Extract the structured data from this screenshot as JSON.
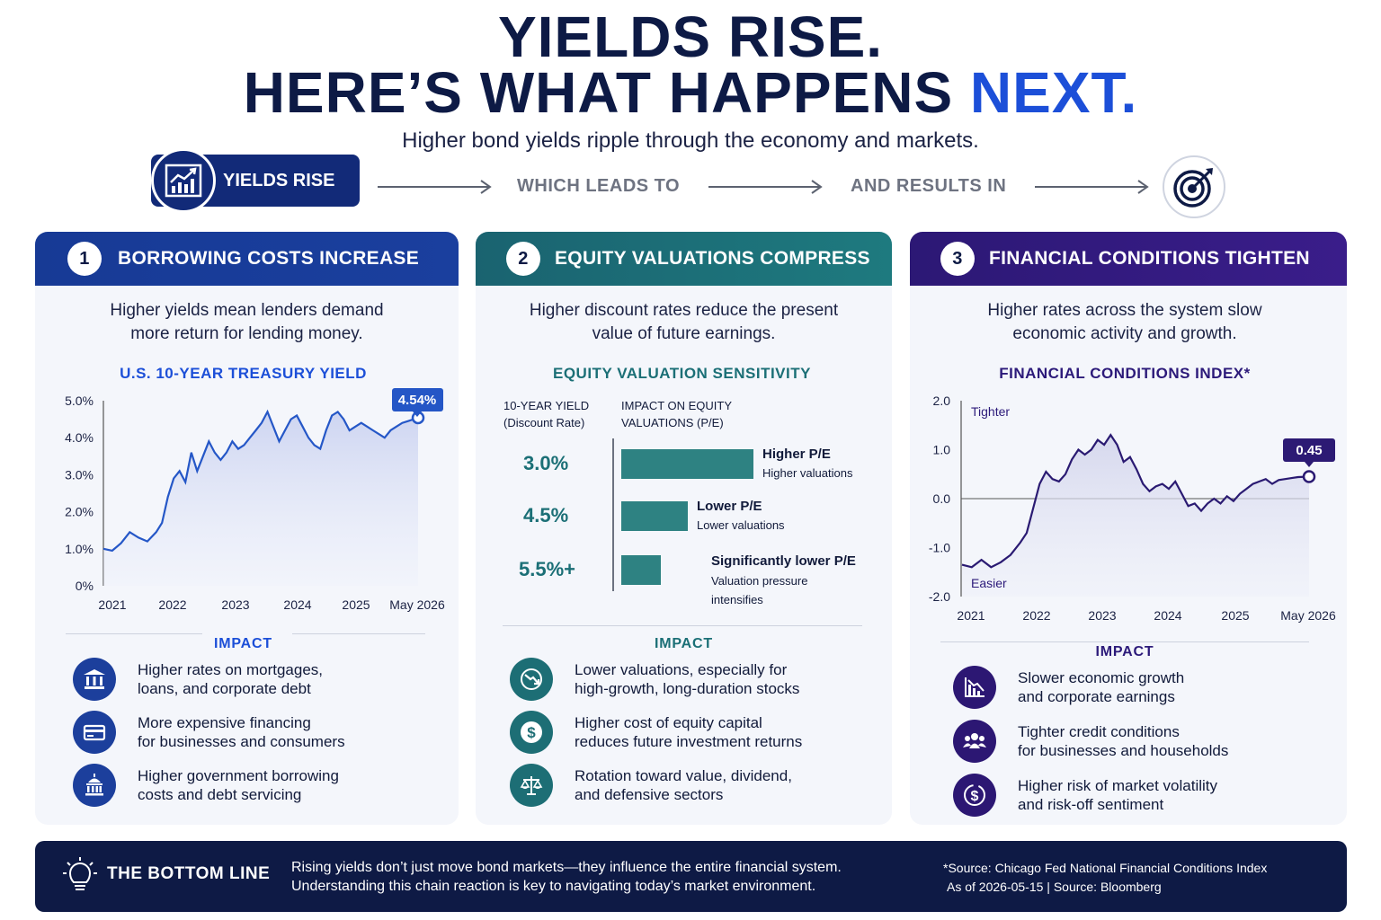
{
  "header": {
    "title_line1": "YIELDS RISE.",
    "title_line2_main": "HERE’S WHAT HAPPENS ",
    "title_line2_accent": "NEXT.",
    "subtitle": "Higher bond yields ripple through the economy and markets."
  },
  "flow": {
    "start": "YIELDS RISE",
    "step2": "WHICH LEADS TO",
    "step3": "AND RESULTS IN"
  },
  "colors": {
    "navy": "#0e1a45",
    "blue": "#1c4fd8",
    "col1_head": "#173a95",
    "teal": "#1c6f76",
    "purple": "#33197f"
  },
  "columns": [
    {
      "number": "1",
      "heading": "BORROWING COSTS INCREASE",
      "description_l1": "Higher yields mean lenders demand",
      "description_l2": "more return for lending money.",
      "chart_title": "U.S. 10-YEAR TREASURY YIELD",
      "impact_title": "IMPACT",
      "impacts": [
        {
          "icon": "bank-icon",
          "l1": "Higher rates on mortgages,",
          "l2": "loans, and corporate debt"
        },
        {
          "icon": "credit-card-icon",
          "l1": "More expensive financing",
          "l2": "for businesses and consumers"
        },
        {
          "icon": "government-building-icon",
          "l1": "Higher government borrowing",
          "l2": "costs and debt servicing"
        }
      ]
    },
    {
      "number": "2",
      "heading": "EQUITY VALUATIONS COMPRESS",
      "description_l1": "Higher discount rates reduce the present",
      "description_l2": "value of future earnings.",
      "chart_title": "EQUITY VALUATION SENSITIVITY",
      "impact_title": "IMPACT",
      "impacts": [
        {
          "icon": "chart-down-icon",
          "l1": "Lower valuations, especially for",
          "l2": "high-growth, long-duration stocks"
        },
        {
          "icon": "dollar-icon",
          "l1": "Higher cost of equity capital",
          "l2": "reduces future investment returns"
        },
        {
          "icon": "scales-icon",
          "l1": "Rotation toward value, dividend,",
          "l2": "and defensive sectors"
        }
      ]
    },
    {
      "number": "3",
      "heading": "FINANCIAL CONDITIONS TIGHTEN",
      "description_l1": "Higher rates across the system slow",
      "description_l2": "economic activity and growth.",
      "chart_title": "FINANCIAL CONDITIONS INDEX*",
      "impact_title": "IMPACT",
      "impacts": [
        {
          "icon": "chart-decline-icon",
          "l1": "Slower economic growth",
          "l2": "and corporate earnings"
        },
        {
          "icon": "people-icon",
          "l1": "Tighter credit conditions",
          "l2": "for businesses and households"
        },
        {
          "icon": "dollar-risk-icon",
          "l1": "Higher risk of market volatility",
          "l2": "and risk-off sentiment"
        }
      ]
    }
  ],
  "chart_data": [
    {
      "type": "area",
      "title": "U.S. 10-YEAR TREASURY YIELD",
      "y_ticks": [
        "5.0%",
        "4.0%",
        "3.0%",
        "2.0%",
        "1.0%",
        "0%"
      ],
      "x_ticks": [
        "2021",
        "2022",
        "2023",
        "2024",
        "2025",
        "May 2026"
      ],
      "ylim": [
        0,
        5
      ],
      "callout": "4.54%",
      "x": [
        2021.0,
        2021.15,
        2021.3,
        2021.45,
        2021.6,
        2021.75,
        2021.9,
        2022.0,
        2022.1,
        2022.2,
        2022.3,
        2022.4,
        2022.5,
        2022.6,
        2022.7,
        2022.8,
        2022.9,
        2023.0,
        2023.1,
        2023.2,
        2023.3,
        2023.4,
        2023.5,
        2023.6,
        2023.7,
        2023.8,
        2023.9,
        2024.0,
        2024.1,
        2024.2,
        2024.3,
        2024.4,
        2024.5,
        2024.6,
        2024.7,
        2024.8,
        2024.9,
        2025.0,
        2025.1,
        2025.2,
        2025.3,
        2025.4,
        2025.5,
        2025.6,
        2025.7,
        2025.8,
        2025.9,
        2026.0,
        2026.1,
        2026.2,
        2026.37
      ],
      "values": [
        1.0,
        0.95,
        1.15,
        1.45,
        1.3,
        1.2,
        1.45,
        1.7,
        2.4,
        2.9,
        3.1,
        2.8,
        3.6,
        3.1,
        3.5,
        3.9,
        3.6,
        3.4,
        3.6,
        3.9,
        3.7,
        3.8,
        4.0,
        4.2,
        4.4,
        4.7,
        4.3,
        3.9,
        4.2,
        4.5,
        4.6,
        4.3,
        4.0,
        3.8,
        3.7,
        4.2,
        4.6,
        4.7,
        4.5,
        4.2,
        4.3,
        4.4,
        4.3,
        4.2,
        4.1,
        4.0,
        4.2,
        4.3,
        4.4,
        4.45,
        4.54
      ]
    },
    {
      "type": "bar",
      "title": "EQUITY VALUATION SENSITIVITY",
      "col1_header_l1": "10-YEAR YIELD",
      "col1_header_l2": "(Discount Rate)",
      "col2_header_l1": "IMPACT ON EQUITY",
      "col2_header_l2": "VALUATIONS (P/E)",
      "categories": [
        "3.0%",
        "4.5%",
        "5.5%+"
      ],
      "values": [
        1.0,
        0.5,
        0.3
      ],
      "labels": [
        {
          "main": "Higher P/E",
          "sub1": "Higher valuations",
          "sub2": ""
        },
        {
          "main": "Lower P/E",
          "sub1": "Lower valuations",
          "sub2": ""
        },
        {
          "main": "Significantly lower P/E",
          "sub1": "Valuation pressure",
          "sub2": "intensifies"
        }
      ]
    },
    {
      "type": "area",
      "title": "FINANCIAL CONDITIONS INDEX*",
      "y_ticks": [
        "2.0",
        "1.0",
        "0.0",
        "-1.0",
        "-2.0"
      ],
      "x_ticks": [
        "2021",
        "2022",
        "2023",
        "2024",
        "2025",
        "May 2026"
      ],
      "ylim": [
        -2,
        2
      ],
      "top_label": "Tighter",
      "bottom_label": "Easier",
      "callout": "0.45",
      "x": [
        2021.0,
        2021.15,
        2021.3,
        2021.45,
        2021.6,
        2021.75,
        2021.9,
        2022.0,
        2022.1,
        2022.2,
        2022.3,
        2022.4,
        2022.5,
        2022.6,
        2022.7,
        2022.8,
        2022.9,
        2023.0,
        2023.1,
        2023.2,
        2023.3,
        2023.4,
        2023.5,
        2023.6,
        2023.7,
        2023.8,
        2023.9,
        2024.0,
        2024.1,
        2024.2,
        2024.3,
        2024.4,
        2024.5,
        2024.6,
        2024.7,
        2024.8,
        2024.9,
        2025.0,
        2025.1,
        2025.2,
        2025.3,
        2025.4,
        2025.5,
        2025.6,
        2025.7,
        2025.8,
        2025.9,
        2026.0,
        2026.1,
        2026.2,
        2026.37
      ],
      "values": [
        -1.35,
        -1.4,
        -1.25,
        -1.4,
        -1.3,
        -1.15,
        -0.9,
        -0.7,
        -0.2,
        0.3,
        0.55,
        0.4,
        0.35,
        0.5,
        0.8,
        1.0,
        0.9,
        1.0,
        1.2,
        1.1,
        1.3,
        1.1,
        0.75,
        0.85,
        0.6,
        0.3,
        0.15,
        0.25,
        0.3,
        0.2,
        0.35,
        0.1,
        -0.15,
        -0.1,
        -0.25,
        -0.1,
        0.0,
        -0.1,
        0.05,
        -0.05,
        0.1,
        0.2,
        0.3,
        0.35,
        0.4,
        0.3,
        0.38,
        0.4,
        0.42,
        0.44,
        0.45
      ]
    }
  ],
  "bottom_bar": {
    "title": "THE BOTTOM LINE",
    "text_l1": "Rising yields don’t just move bond markets—they influence the entire financial system.",
    "text_l2": "Understanding this chain reaction is key to navigating today’s market environment.",
    "source_l1": "*Source: Chicago Fed National Financial Conditions Index",
    "source_l2": "As of 2026-05-15 | Source: Bloomberg"
  }
}
